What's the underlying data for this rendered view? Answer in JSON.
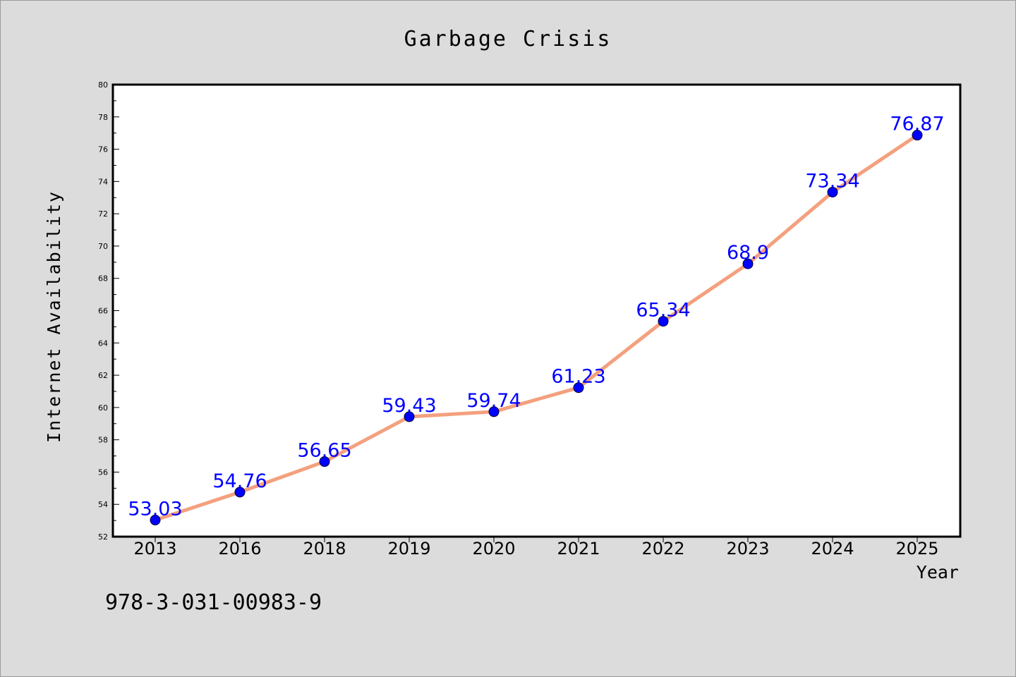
{
  "footer_text": "978-3-031-00983-9",
  "chart_data": {
    "type": "line",
    "title": "Garbage Crisis",
    "xlabel": "Year",
    "ylabel": "Internet Availability",
    "categories": [
      "2013",
      "2016",
      "2018",
      "2019",
      "2020",
      "2021",
      "2022",
      "2023",
      "2024",
      "2025"
    ],
    "values": [
      53.03,
      54.76,
      56.65,
      59.43,
      59.74,
      61.23,
      65.34,
      68.9,
      73.34,
      76.87
    ],
    "data_labels": [
      "53.03",
      "54.76",
      "56.65",
      "59.43",
      "59.74",
      "61.23",
      "65.34",
      "68.9",
      "73.34",
      "76.87"
    ],
    "ylim": [
      52,
      80
    ],
    "yticks": [
      52,
      54,
      56,
      58,
      60,
      62,
      64,
      66,
      68,
      70,
      72,
      74,
      76,
      78,
      80
    ],
    "grid": false,
    "legend": false,
    "colors": {
      "line": "#f4a07e",
      "marker": "#0000ff",
      "label": "#0000ff",
      "plot_background": "#ffffff",
      "page_background": "#dcdcdc"
    }
  }
}
